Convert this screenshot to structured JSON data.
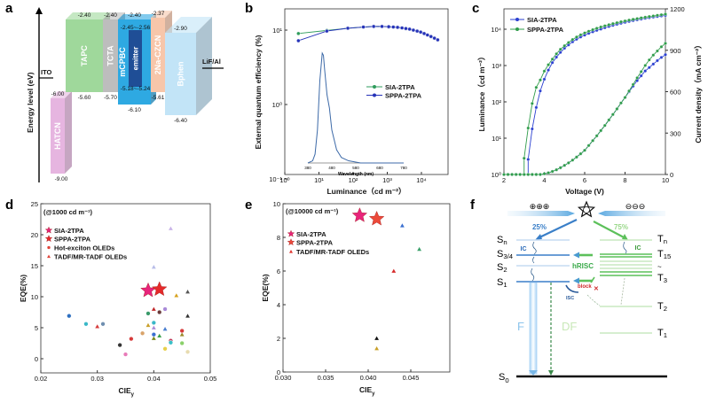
{
  "panel_labels": [
    "a",
    "b",
    "c",
    "d",
    "e",
    "f"
  ],
  "energy_diagram": {
    "axis_label": "Energy level (eV)",
    "electrodes": [
      {
        "name": "ITO"
      },
      {
        "name": "LiF/Al"
      }
    ],
    "layers": [
      {
        "name": "HATCN",
        "lumo": "-6.00",
        "homo": "-9.00",
        "color": "#e6b5e0"
      },
      {
        "name": "TAPC",
        "lumo": "-2.40",
        "homo": "-5.60",
        "color": "#9fd89b"
      },
      {
        "name": "TCTA",
        "lumo": "-2.40",
        "homo": "-5.70",
        "color": "#bdbdbd"
      },
      {
        "name": "mCPBC",
        "lumo": "-2.40",
        "homo": "-6.10",
        "color": "#2ea9e2"
      },
      {
        "name": "emitter",
        "lumo": "-2.45~-2.56",
        "homo": "-5.18~-5.24",
        "color": "#1f4e96"
      },
      {
        "name": "2Na-CZCN",
        "lumo": "-2.37",
        "homo": "-5.61",
        "color": "#f7c6aa"
      },
      {
        "name": "Bphen",
        "lumo": "-2.90",
        "homo": "-6.40",
        "color": "#c2e4f7"
      }
    ]
  },
  "chart_data": [
    {
      "type": "line",
      "panel": "b",
      "xlabel": "Luminance（cd m⁻²）",
      "ylabel": "External quantum efficiency (%)",
      "xscale": "log",
      "yscale": "log",
      "xlim": [
        1,
        60000
      ],
      "ylim": [
        0.1,
        20
      ],
      "xticks": [
        1,
        10,
        100,
        1000,
        10000
      ],
      "xtick_labels": [
        "10⁰",
        "10¹",
        "10²",
        "10³",
        "10⁴"
      ],
      "yticks": [
        0.1,
        1,
        10
      ],
      "ytick_labels": [
        "10⁻¹",
        "10⁰",
        "10¹"
      ],
      "legend": "center-right",
      "series": [
        {
          "name": "SIA-2TPA",
          "color": "#2f9c5c",
          "x": [
            2.5,
            17,
            70,
            200,
            400,
            700,
            1100,
            1500,
            2000,
            2700,
            3500,
            4500,
            5800,
            7500,
            9500,
            12000,
            15000,
            19000,
            24000,
            30000
          ],
          "y": [
            9.0,
            9.9,
            10.6,
            11.0,
            11.2,
            11.2,
            11.1,
            11.0,
            10.9,
            10.7,
            10.5,
            10.3,
            10.0,
            9.7,
            9.4,
            9.0,
            8.6,
            8.2,
            7.8,
            7.4
          ]
        },
        {
          "name": "SPPA-2TPA",
          "color": "#2532b8",
          "x": [
            2.5,
            17,
            70,
            200,
            400,
            700,
            1100,
            1500,
            2000,
            2700,
            3500,
            4500,
            5800,
            7500,
            9500,
            12000,
            15000,
            19000,
            24000,
            30000
          ],
          "y": [
            7.2,
            9.7,
            10.6,
            11.0,
            11.2,
            11.2,
            11.1,
            11.0,
            10.9,
            10.7,
            10.5,
            10.3,
            10.0,
            9.7,
            9.4,
            9.0,
            8.6,
            8.2,
            7.8,
            7.4
          ]
        }
      ],
      "inset": {
        "xlabel": "Wavelength (nm)",
        "xticks": [
          380,
          480,
          580,
          680,
          780
        ],
        "xtick_labels": [
          "380",
          "480",
          "580",
          "680",
          "780"
        ],
        "color": "#3d6aa8",
        "x": [
          380,
          400,
          410,
          420,
          430,
          440,
          445,
          450,
          460,
          470,
          480,
          500,
          520,
          550,
          600,
          700,
          780
        ],
        "y": [
          0,
          0.02,
          0.08,
          0.3,
          0.75,
          1.0,
          0.98,
          0.85,
          0.62,
          0.5,
          0.3,
          0.12,
          0.05,
          0.02,
          0,
          0,
          0
        ]
      }
    },
    {
      "type": "line",
      "panel": "c",
      "xlabel": "Voltage (V)",
      "ylabel_left": "Luminance（cd m⁻²）",
      "ylabel_right": "Current density（mA cm⁻²）",
      "xlim": [
        2,
        10
      ],
      "xticks": [
        2,
        4,
        6,
        8,
        10
      ],
      "xtick_labels": [
        "2",
        "4",
        "6",
        "8",
        "10"
      ],
      "ylim_left": [
        1,
        28000
      ],
      "yscale_left": "log",
      "yticks_left": [
        1,
        10,
        100,
        1000,
        10000
      ],
      "ytick_labels_left": [
        "10⁰",
        "10¹",
        "10²",
        "10³",
        "10⁴"
      ],
      "ylim_right": [
        0,
        1200
      ],
      "yticks_right": [
        0,
        300,
        600,
        900,
        1200
      ],
      "ytick_labels_right": [
        "0",
        "300",
        "600",
        "900",
        "1200"
      ],
      "legend": "top-left",
      "voltage": [
        2.0,
        2.2,
        2.4,
        2.6,
        2.8,
        3.0,
        3.2,
        3.4,
        3.6,
        3.8,
        4.0,
        4.2,
        4.4,
        4.6,
        4.8,
        5.0,
        5.2,
        5.4,
        5.6,
        5.8,
        6.0,
        6.2,
        6.4,
        6.6,
        6.8,
        7.0,
        7.2,
        7.4,
        7.6,
        7.8,
        8.0,
        8.2,
        8.4,
        8.6,
        8.8,
        9.0,
        9.2,
        9.4,
        9.6,
        9.8,
        10.0
      ],
      "series": [
        {
          "name": "SIA-2TPA",
          "color": "#2a3fd0",
          "luminance": [
            null,
            null,
            null,
            null,
            null,
            null,
            2.6,
            18,
            70,
            200,
            420,
            750,
            1200,
            1700,
            2300,
            3000,
            3700,
            4500,
            5300,
            6100,
            6900,
            7700,
            8500,
            9300,
            10100,
            11000,
            11900,
            12800,
            13700,
            14600,
            15500,
            16400,
            17300,
            18200,
            19100,
            20000,
            20800,
            21600,
            22400,
            23200,
            24000
          ],
          "current_density": [
            0,
            0,
            0,
            0,
            0,
            0,
            0,
            0,
            0,
            0,
            5,
            12,
            22,
            34,
            49,
            66,
            84,
            104,
            126,
            150,
            175,
            210,
            245,
            280,
            318,
            355,
            395,
            435,
            475,
            518,
            558,
            600,
            640,
            680,
            715,
            750,
            775,
            800,
            825,
            848,
            868
          ]
        },
        {
          "name": "SPPA-2TPA",
          "color": "#2f9c4a",
          "luminance": [
            null,
            null,
            null,
            null,
            null,
            2.8,
            19,
            90,
            250,
            400,
            700,
            1050,
            1500,
            2100,
            2800,
            3500,
            4300,
            5200,
            6100,
            7000,
            7900,
            8800,
            9700,
            10600,
            11500,
            12400,
            13300,
            14200,
            15100,
            16000,
            16900,
            17800,
            18700,
            19600,
            20500,
            21400,
            22300,
            23200,
            24100,
            25000,
            26000
          ],
          "current_density": [
            0,
            0,
            0,
            0,
            0,
            0,
            0,
            0,
            0,
            0,
            5,
            12,
            22,
            34,
            49,
            66,
            84,
            104,
            126,
            150,
            175,
            210,
            245,
            280,
            318,
            355,
            395,
            435,
            475,
            518,
            558,
            605,
            652,
            700,
            745,
            790,
            830,
            865,
            895,
            925,
            950
          ]
        }
      ]
    },
    {
      "type": "scatter",
      "panel": "d",
      "annotation": "(@1000 cd m⁻¹)",
      "xlabel": "CIE",
      "xlabel_sub": "y",
      "ylabel": "EQE(%)",
      "xlim": [
        0.02,
        0.05
      ],
      "ylim": [
        -2.5,
        25
      ],
      "xticks": [
        0.02,
        0.03,
        0.04,
        0.05
      ],
      "xtick_labels": [
        "0.02",
        "0.03",
        "0.04",
        "0.05"
      ],
      "yticks": [
        0,
        5,
        10,
        15,
        20,
        25
      ],
      "ytick_labels": [
        "0",
        "5",
        "10",
        "15",
        "20",
        "25"
      ],
      "legend": "top-left",
      "legend_entries": [
        {
          "name": "SIA-2TPA",
          "marker": "star",
          "color": "#e8247c"
        },
        {
          "name": "SPPA-2TPA",
          "marker": "star",
          "color": "#e52a2a"
        },
        {
          "name": "Hot-exciton OLEDs",
          "marker": "circle",
          "color": "#e0443a"
        },
        {
          "name": "TADF/MR-TADF OLEDs",
          "marker": "triangle",
          "color": "#e0443a"
        }
      ],
      "points": [
        {
          "x": 0.039,
          "y": 11.0,
          "marker": "star",
          "color": "#e8247c"
        },
        {
          "x": 0.041,
          "y": 11.2,
          "marker": "star",
          "color": "#e52a2a"
        },
        {
          "x": 0.043,
          "y": 21.0,
          "marker": "triangle",
          "color": "#c9b4e8"
        },
        {
          "x": 0.04,
          "y": 14.8,
          "marker": "triangle",
          "color": "#b8bde8"
        },
        {
          "x": 0.044,
          "y": 10.2,
          "marker": "triangle",
          "color": "#d6a21e"
        },
        {
          "x": 0.046,
          "y": 10.8,
          "marker": "triangle",
          "color": "#555555"
        },
        {
          "x": 0.046,
          "y": 6.9,
          "marker": "triangle",
          "color": "#333333"
        },
        {
          "x": 0.03,
          "y": 5.2,
          "marker": "triangle",
          "color": "#d63a3a"
        },
        {
          "x": 0.04,
          "y": 8.0,
          "marker": "triangle",
          "color": "#c0282a"
        },
        {
          "x": 0.039,
          "y": 5.4,
          "marker": "triangle",
          "color": "#c9a02a"
        },
        {
          "x": 0.04,
          "y": 5.0,
          "marker": "triangle",
          "color": "#a98ad8"
        },
        {
          "x": 0.042,
          "y": 4.8,
          "marker": "triangle",
          "color": "#4a7fd0"
        },
        {
          "x": 0.04,
          "y": 3.3,
          "marker": "triangle",
          "color": "#7a8a1e"
        },
        {
          "x": 0.041,
          "y": 3.7,
          "marker": "triangle",
          "color": "#3aa04a"
        },
        {
          "x": 0.045,
          "y": 3.9,
          "marker": "triangle",
          "color": "#9a8a2a"
        },
        {
          "x": 0.025,
          "y": 6.9,
          "marker": "circle",
          "color": "#2d6fc0"
        },
        {
          "x": 0.028,
          "y": 5.6,
          "marker": "circle",
          "color": "#3ab8c8"
        },
        {
          "x": 0.031,
          "y": 5.6,
          "marker": "circle",
          "color": "#6f8fb0"
        },
        {
          "x": 0.034,
          "y": 2.2,
          "marker": "circle",
          "color": "#333333"
        },
        {
          "x": 0.035,
          "y": 0.7,
          "marker": "circle",
          "color": "#e87ab8"
        },
        {
          "x": 0.036,
          "y": 3.2,
          "marker": "circle",
          "color": "#d63a3a"
        },
        {
          "x": 0.038,
          "y": 4.1,
          "marker": "circle",
          "color": "#d9a36a"
        },
        {
          "x": 0.039,
          "y": 7.3,
          "marker": "circle",
          "color": "#3a9a6a"
        },
        {
          "x": 0.041,
          "y": 7.5,
          "marker": "circle",
          "color": "#6a3a3a"
        },
        {
          "x": 0.042,
          "y": 8.0,
          "marker": "circle",
          "color": "#a98ad8"
        },
        {
          "x": 0.04,
          "y": 5.8,
          "marker": "circle",
          "color": "#3ab8c8"
        },
        {
          "x": 0.04,
          "y": 3.9,
          "marker": "circle",
          "color": "#3a6fd0"
        },
        {
          "x": 0.042,
          "y": 1.6,
          "marker": "circle",
          "color": "#e8d04a"
        },
        {
          "x": 0.043,
          "y": 2.9,
          "marker": "circle",
          "color": "#c03a5a"
        },
        {
          "x": 0.043,
          "y": 2.6,
          "marker": "circle",
          "color": "#3ac0c8"
        },
        {
          "x": 0.045,
          "y": 4.5,
          "marker": "circle",
          "color": "#d63a3a"
        },
        {
          "x": 0.045,
          "y": 2.5,
          "marker": "circle",
          "color": "#8ad06a"
        },
        {
          "x": 0.046,
          "y": 1.1,
          "marker": "circle",
          "color": "#e8dcb0"
        }
      ]
    },
    {
      "type": "scatter",
      "panel": "e",
      "annotation": "(@10000 cd m⁻¹)",
      "xlabel": "CIE",
      "xlabel_sub": "y",
      "ylabel": "EQE(%)",
      "xlim": [
        0.03,
        0.0496
      ],
      "ylim": [
        0,
        10
      ],
      "xticks": [
        0.03,
        0.035,
        0.04,
        0.045
      ],
      "xtick_labels": [
        "0.030",
        "0.035",
        "0.040",
        "0.045"
      ],
      "yticks": [
        0,
        2,
        4,
        6,
        8,
        10
      ],
      "ytick_labels": [
        "0",
        "2",
        "4",
        "6",
        "8",
        "10"
      ],
      "legend": "top-left",
      "legend_entries": [
        {
          "name": "SIA-2TPA",
          "marker": "star",
          "color": "#e8247c"
        },
        {
          "name": "SPPA-2TPA",
          "marker": "star",
          "color": "#ec4a3a"
        },
        {
          "name": "TADF/MR-TADF OLEDs",
          "marker": "triangle",
          "color": "#e0302a"
        }
      ],
      "points": [
        {
          "x": 0.039,
          "y": 9.3,
          "marker": "star",
          "color": "#e8247c"
        },
        {
          "x": 0.041,
          "y": 9.1,
          "marker": "star",
          "color": "#ec4a3a"
        },
        {
          "x": 0.044,
          "y": 8.7,
          "marker": "triangle",
          "color": "#3a6fd0"
        },
        {
          "x": 0.046,
          "y": 7.3,
          "marker": "triangle",
          "color": "#3aa06a"
        },
        {
          "x": 0.043,
          "y": 6.0,
          "marker": "triangle",
          "color": "#d62a2a"
        },
        {
          "x": 0.041,
          "y": 2.0,
          "marker": "triangle",
          "color": "#111111"
        },
        {
          "x": 0.041,
          "y": 1.4,
          "marker": "triangle",
          "color": "#c9a02a"
        }
      ]
    }
  ],
  "mechanism_diagram": {
    "holes": "⊕⊕⊕",
    "electrons": "⊖⊖⊖",
    "singlet_fraction": "25%",
    "triplet_fraction": "75%",
    "singlet_levels": [
      {
        "label": "S",
        "sub": "n"
      },
      {
        "label": "S",
        "sub": "3/4"
      },
      {
        "label": "S",
        "sub": "2"
      },
      {
        "label": "S",
        "sub": "1"
      }
    ],
    "triplet_levels": [
      {
        "label": "T",
        "sub": "n"
      },
      {
        "label": "T",
        "sub": "15"
      },
      {
        "label": "~",
        "sub": ""
      },
      {
        "label": "T",
        "sub": "3"
      },
      {
        "label": "T",
        "sub": "2"
      },
      {
        "label": "T",
        "sub": "1"
      }
    ],
    "ground": {
      "label": "S",
      "sub": "0"
    },
    "ic_label": "IC",
    "hrisc_label": "hRISC",
    "block_label": "block",
    "block_mark": "✕",
    "isc_label": "ISC",
    "f_label": "F",
    "df_label": "DF",
    "colors": {
      "singlet": "#3a7fc8",
      "triplet": "#5cc05a",
      "block": "#d02a2a"
    }
  }
}
